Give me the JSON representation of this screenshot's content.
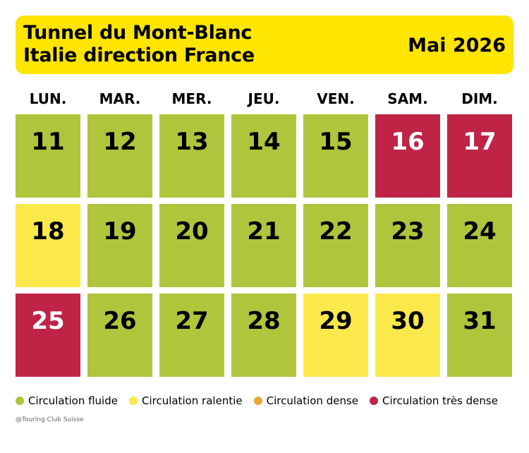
{
  "header": {
    "title_line1": "Tunnel du Mont-Blanc",
    "title_line2": "Italie direction France",
    "month": "Mai 2026"
  },
  "weekdays": [
    "LUN.",
    "MAR.",
    "MER.",
    "JEU.",
    "VEN.",
    "SAM.",
    "DIM."
  ],
  "colors": {
    "banner": "#ffe500",
    "fluide": "#b0c43c",
    "ralentie": "#fbe94b",
    "dense": "#e8a53a",
    "tres_dense": "#bf2447"
  },
  "days": [
    {
      "day": "11",
      "status": "fluide"
    },
    {
      "day": "12",
      "status": "fluide"
    },
    {
      "day": "13",
      "status": "fluide"
    },
    {
      "day": "14",
      "status": "fluide"
    },
    {
      "day": "15",
      "status": "fluide"
    },
    {
      "day": "16",
      "status": "tres_dense"
    },
    {
      "day": "17",
      "status": "tres_dense"
    },
    {
      "day": "18",
      "status": "ralentie"
    },
    {
      "day": "19",
      "status": "fluide"
    },
    {
      "day": "20",
      "status": "fluide"
    },
    {
      "day": "21",
      "status": "fluide"
    },
    {
      "day": "22",
      "status": "fluide"
    },
    {
      "day": "23",
      "status": "fluide"
    },
    {
      "day": "24",
      "status": "fluide"
    },
    {
      "day": "25",
      "status": "tres_dense"
    },
    {
      "day": "26",
      "status": "fluide"
    },
    {
      "day": "27",
      "status": "fluide"
    },
    {
      "day": "28",
      "status": "fluide"
    },
    {
      "day": "29",
      "status": "ralentie"
    },
    {
      "day": "30",
      "status": "ralentie"
    },
    {
      "day": "31",
      "status": "fluide"
    }
  ],
  "legend": [
    {
      "key": "fluide",
      "label": "Circulation fluide"
    },
    {
      "key": "ralentie",
      "label": "Circulation ralentie"
    },
    {
      "key": "dense",
      "label": "Circulation dense"
    },
    {
      "key": "tres_dense",
      "label": "Circulation très dense"
    }
  ],
  "credit": "@Touring Club Suisse"
}
